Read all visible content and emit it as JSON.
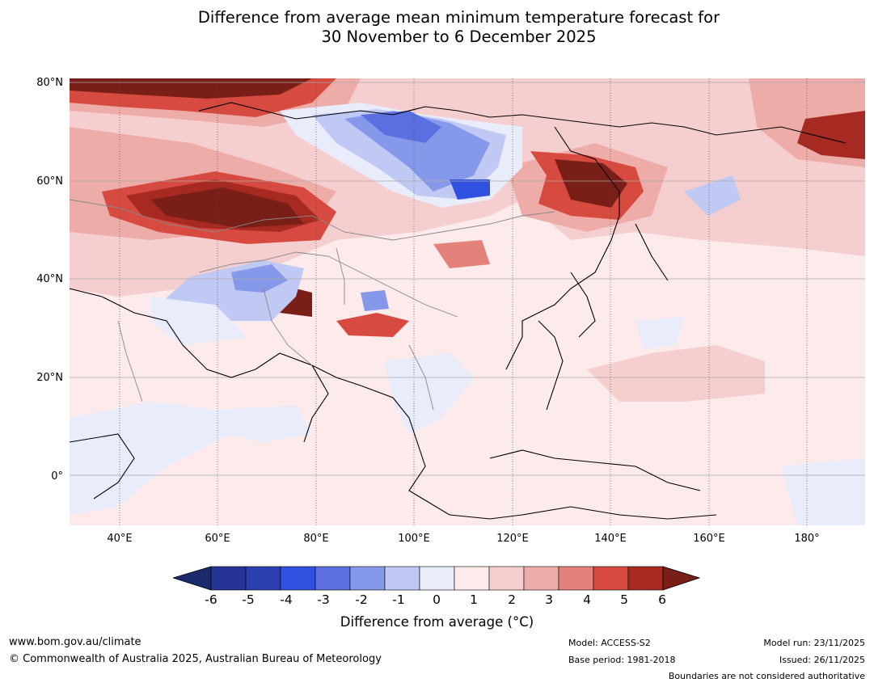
{
  "title_line1": "Difference from average mean minimum temperature forecast for",
  "title_line2": "30 November to 6 December 2025",
  "lat_labels": [
    "80°N",
    "60°N",
    "40°N",
    "20°N",
    "0°"
  ],
  "lon_labels": [
    "40°E",
    "60°E",
    "80°E",
    "100°E",
    "120°E",
    "140°E",
    "160°E",
    "180°"
  ],
  "colorbar": {
    "ticks": [
      "-6",
      "-5",
      "-4",
      "-3",
      "-2",
      "-1",
      "0",
      "1",
      "2",
      "3",
      "4",
      "5",
      "6"
    ],
    "colors": [
      "#253494",
      "#2c3fb0",
      "#3050e0",
      "#5b6fe0",
      "#8698ea",
      "#c0c8f4",
      "#e8ecfb",
      "#fdeaea",
      "#f5cfcf",
      "#edaca8",
      "#e4817a",
      "#d74a40",
      "#a72a22"
    ],
    "low_extend_color": "#1c2a6e",
    "high_extend_color": "#7a1e18",
    "label": "Difference from average (°C)"
  },
  "footer": {
    "url": "www.bom.gov.au/climate",
    "copyright": "© Commonwealth of Australia 2025, Australian Bureau of Meteorology",
    "model": "Model: ACCESS-S2",
    "base_period": "Base period: 1981-2018",
    "model_run": "Model run: 23/11/2025",
    "issued": "Issued: 26/11/2025",
    "disclaimer": "Boundaries are not considered authoritative"
  }
}
